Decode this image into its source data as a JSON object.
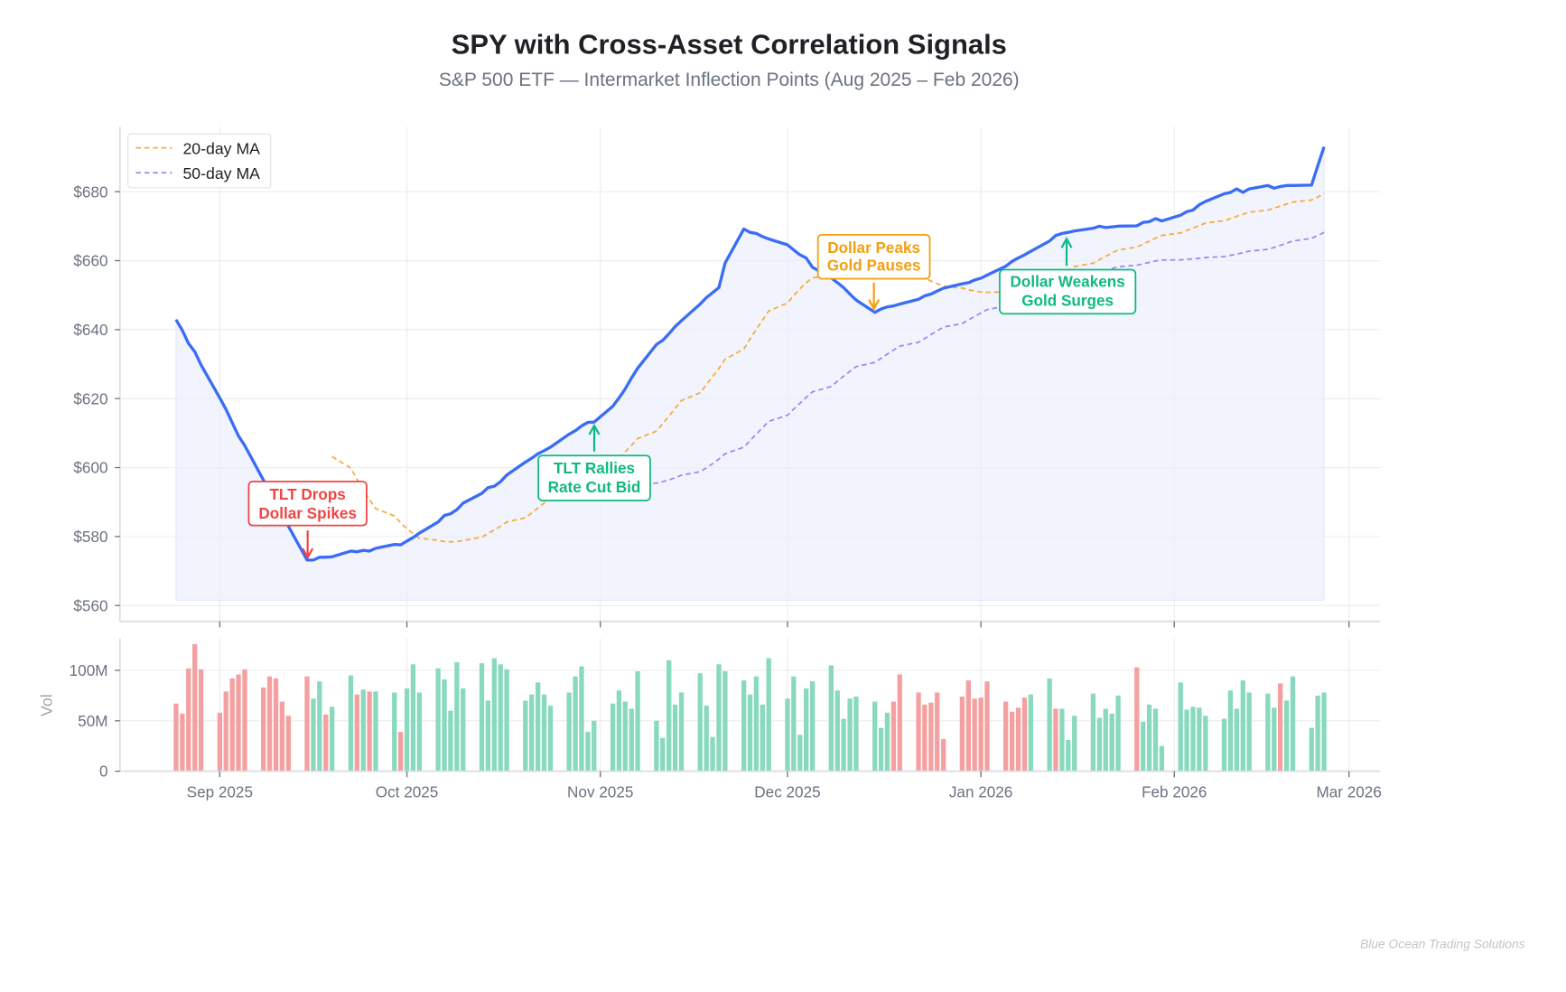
{
  "chart_data": {
    "type": "line",
    "title": "SPY with Cross-Asset Correlation Signals",
    "subtitle": "S&P 500 ETF — Intermarket Inflection Points (Aug 2025 – Feb 2026)",
    "start_date": "2025-08-25",
    "ylabel_volume": "Vol",
    "ylim": [
      555.4,
      698.8
    ],
    "volume_ylim": [
      0,
      131.7
    ],
    "y_ticks": [
      {
        "value": 560,
        "label": "$560"
      },
      {
        "value": 580,
        "label": "$580"
      },
      {
        "value": 600,
        "label": "$600"
      },
      {
        "value": 620,
        "label": "$620"
      },
      {
        "value": 640,
        "label": "$640"
      },
      {
        "value": 660,
        "label": "$660"
      },
      {
        "value": 680,
        "label": "$680"
      }
    ],
    "volume_ticks": [
      {
        "value": 0,
        "label": "0"
      },
      {
        "value": 50,
        "label": "50M"
      },
      {
        "value": 100,
        "label": "100M"
      }
    ],
    "x_ticks": [
      {
        "date": "2025-09-01",
        "label": "Sep 2025"
      },
      {
        "date": "2025-10-01",
        "label": "Oct 2025"
      },
      {
        "date": "2025-11-01",
        "label": "Nov 2025"
      },
      {
        "date": "2025-12-01",
        "label": "Dec 2025"
      },
      {
        "date": "2026-01-01",
        "label": "Jan 2026"
      },
      {
        "date": "2026-02-01",
        "label": "Feb 2026"
      },
      {
        "date": "2026-03-01",
        "label": "Mar 2026"
      }
    ],
    "xlim": [
      "2025-08-16",
      "2026-03-06"
    ],
    "fill_floor": 561.5,
    "legend": {
      "placement": "top-left",
      "entries": [
        {
          "label": "20-day MA",
          "window": 20,
          "color": "#f5ab3c"
        },
        {
          "label": "50-day MA",
          "window": 50,
          "color": "#a285f5"
        }
      ]
    },
    "price_color": "#3b6cf5",
    "price": [
      642.9,
      639.8,
      636.0,
      633.6,
      629.8,
      620.2,
      616.9,
      613.0,
      609.2,
      606.4,
      596.4,
      593.0,
      589.2,
      586.3,
      583.0,
      573.2,
      573.2,
      574.0,
      574.0,
      574.1,
      575.8,
      575.6,
      576.0,
      575.8,
      576.6,
      577.7,
      577.6,
      578.7,
      579.7,
      581.0,
      584.2,
      586.1,
      586.6,
      587.8,
      589.7,
      592.5,
      594.2,
      594.6,
      595.9,
      597.8,
      601.6,
      602.7,
      604.0,
      604.9,
      605.9,
      609.7,
      610.7,
      612.1,
      613.1,
      613.2,
      617.8,
      620.2,
      622.8,
      626.0,
      628.8,
      635.7,
      636.9,
      638.8,
      640.9,
      642.6,
      647.4,
      649.3,
      650.7,
      652.2,
      659.3,
      669.2,
      668.2,
      667.9,
      667.0,
      666.3,
      664.6,
      663.1,
      661.7,
      660.8,
      658.1,
      655.0,
      653.6,
      652.2,
      650.3,
      648.6,
      645.0,
      646.0,
      646.6,
      646.9,
      647.4,
      648.8,
      649.8,
      650.3,
      651.2,
      652.0,
      653.3,
      653.6,
      654.4,
      654.9,
      655.8,
      658.4,
      659.8,
      660.8,
      661.7,
      662.7,
      665.7,
      667.3,
      667.9,
      668.2,
      668.6,
      669.4,
      670.0,
      669.6,
      669.8,
      670.0,
      670.1,
      671.1,
      671.3,
      672.2,
      671.5,
      673.2,
      674.2,
      674.7,
      676.2,
      677.2,
      679.4,
      679.8,
      680.8,
      679.8,
      680.8,
      681.8,
      681.0,
      681.5,
      681.8,
      681.8,
      681.9,
      687.5,
      693.0
    ],
    "volume_millions": [
      67,
      57,
      102,
      126,
      101,
      58,
      79,
      92,
      96,
      101,
      83,
      94,
      92,
      69,
      55,
      94,
      72,
      89,
      56,
      64,
      95,
      76,
      81,
      79,
      79,
      78,
      39,
      82,
      106,
      78,
      102,
      91,
      60,
      108,
      82,
      107,
      70,
      112,
      106,
      101,
      70,
      76,
      88,
      76,
      65,
      78,
      94,
      104,
      39,
      50,
      67,
      80,
      69,
      62,
      99,
      50,
      33,
      110,
      66,
      78,
      97,
      65,
      34,
      106,
      99,
      90,
      76,
      94,
      66,
      112,
      72,
      94,
      36,
      82,
      89,
      105,
      80,
      52,
      72,
      74,
      69,
      43,
      58,
      69,
      96,
      78,
      66,
      68,
      78,
      32,
      74,
      90,
      72,
      73,
      89,
      69,
      59,
      63,
      73,
      76,
      92,
      62,
      62,
      31,
      55,
      77,
      53,
      62,
      57,
      75,
      103,
      49,
      66,
      62,
      25,
      88,
      61,
      64,
      63,
      55,
      52,
      80,
      62,
      90,
      78,
      77,
      63,
      87,
      70,
      94,
      43,
      75,
      78
    ],
    "volume_direction": "rrrrrrrrrrrrrrrrggrggrgrggrggggggggggggggggggggggggggggggggggggggggggggggggggggggggrrrrrrrrrrrrrrrrggrggggggggrggggggggggggggggrggggggrgggggggggrggrggrggg",
    "volume_colors": {
      "up": "#88d9be",
      "down": "#f4a0a0"
    },
    "annotations": [
      {
        "line1": "TLT Drops",
        "line2": "Dollar Spikes",
        "color": "#ef4444"
      },
      {
        "line1": "TLT Rallies",
        "line2": "Rate Cut Bid",
        "color": "#10b981"
      },
      {
        "line1": "Dollar Peaks",
        "line2": "Gold Pauses",
        "color": "#f59e0b"
      },
      {
        "line1": "Dollar Weakens",
        "line2": "Gold Surges",
        "color": "#10b981"
      }
    ],
    "watermark": "Blue Ocean Trading Solutions"
  }
}
